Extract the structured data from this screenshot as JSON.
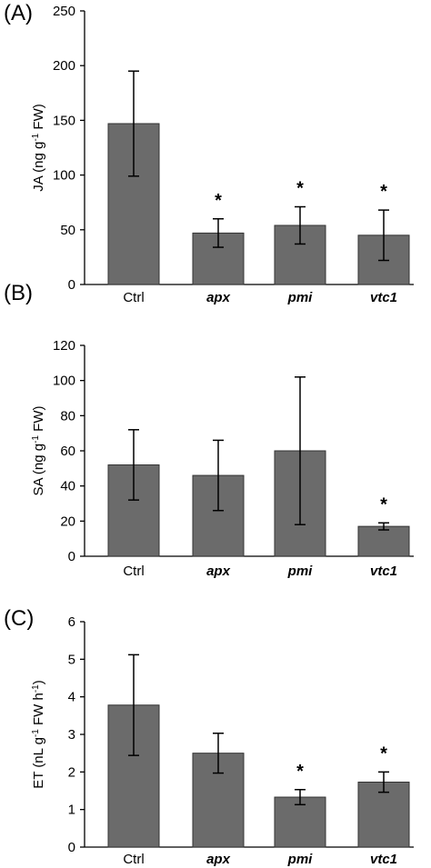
{
  "chart_data": [
    {
      "type": "bar",
      "panel_label": "(A)",
      "ylabel_main": "JA  (ng g",
      "ylabel_sup": "-1",
      "ylabel_tail": " FW)",
      "categories": [
        "Ctrl",
        "apx",
        "pmi",
        "vtc1"
      ],
      "italic_categories": [
        false,
        true,
        true,
        true
      ],
      "values": [
        147,
        47,
        54,
        45
      ],
      "errors": [
        48,
        13,
        17,
        23
      ],
      "significant": [
        false,
        true,
        true,
        true
      ],
      "significance_marker": "*",
      "ylim": [
        0,
        250
      ],
      "yticks": [
        "0",
        "50",
        "100",
        "150",
        "200",
        "250"
      ],
      "bar_color": "#6b6b6b"
    },
    {
      "type": "bar",
      "panel_label": "(B)",
      "ylabel_main": "SA (ng g",
      "ylabel_sup": "-1",
      "ylabel_tail": " FW)",
      "categories": [
        "Ctrl",
        "apx",
        "pmi",
        "vtc1"
      ],
      "italic_categories": [
        false,
        true,
        true,
        true
      ],
      "values": [
        52,
        46,
        60,
        17
      ],
      "errors": [
        20,
        20,
        42,
        2
      ],
      "significant": [
        false,
        false,
        false,
        true
      ],
      "significance_marker": "*",
      "ylim": [
        0,
        120
      ],
      "yticks": [
        "0",
        "20",
        "40",
        "60",
        "80",
        "100",
        "120"
      ],
      "bar_color": "#6b6b6b"
    },
    {
      "type": "bar",
      "panel_label": "(C)",
      "ylabel_main": "ET (nL g",
      "ylabel_sup": "-1",
      "ylabel_mid": " FW h",
      "ylabel_sup2": "-1",
      "ylabel_tail": ")",
      "categories": [
        "Ctrl",
        "apx",
        "pmi",
        "vtc1"
      ],
      "italic_categories": [
        false,
        true,
        true,
        true
      ],
      "values": [
        3.78,
        2.5,
        1.33,
        1.73
      ],
      "errors": [
        1.34,
        0.53,
        0.2,
        0.27
      ],
      "significant": [
        false,
        false,
        true,
        true
      ],
      "significance_marker": "*",
      "ylim": [
        0,
        6
      ],
      "yticks": [
        "0",
        "1",
        "2",
        "3",
        "4",
        "5",
        "6"
      ],
      "bar_color": "#6b6b6b"
    }
  ]
}
